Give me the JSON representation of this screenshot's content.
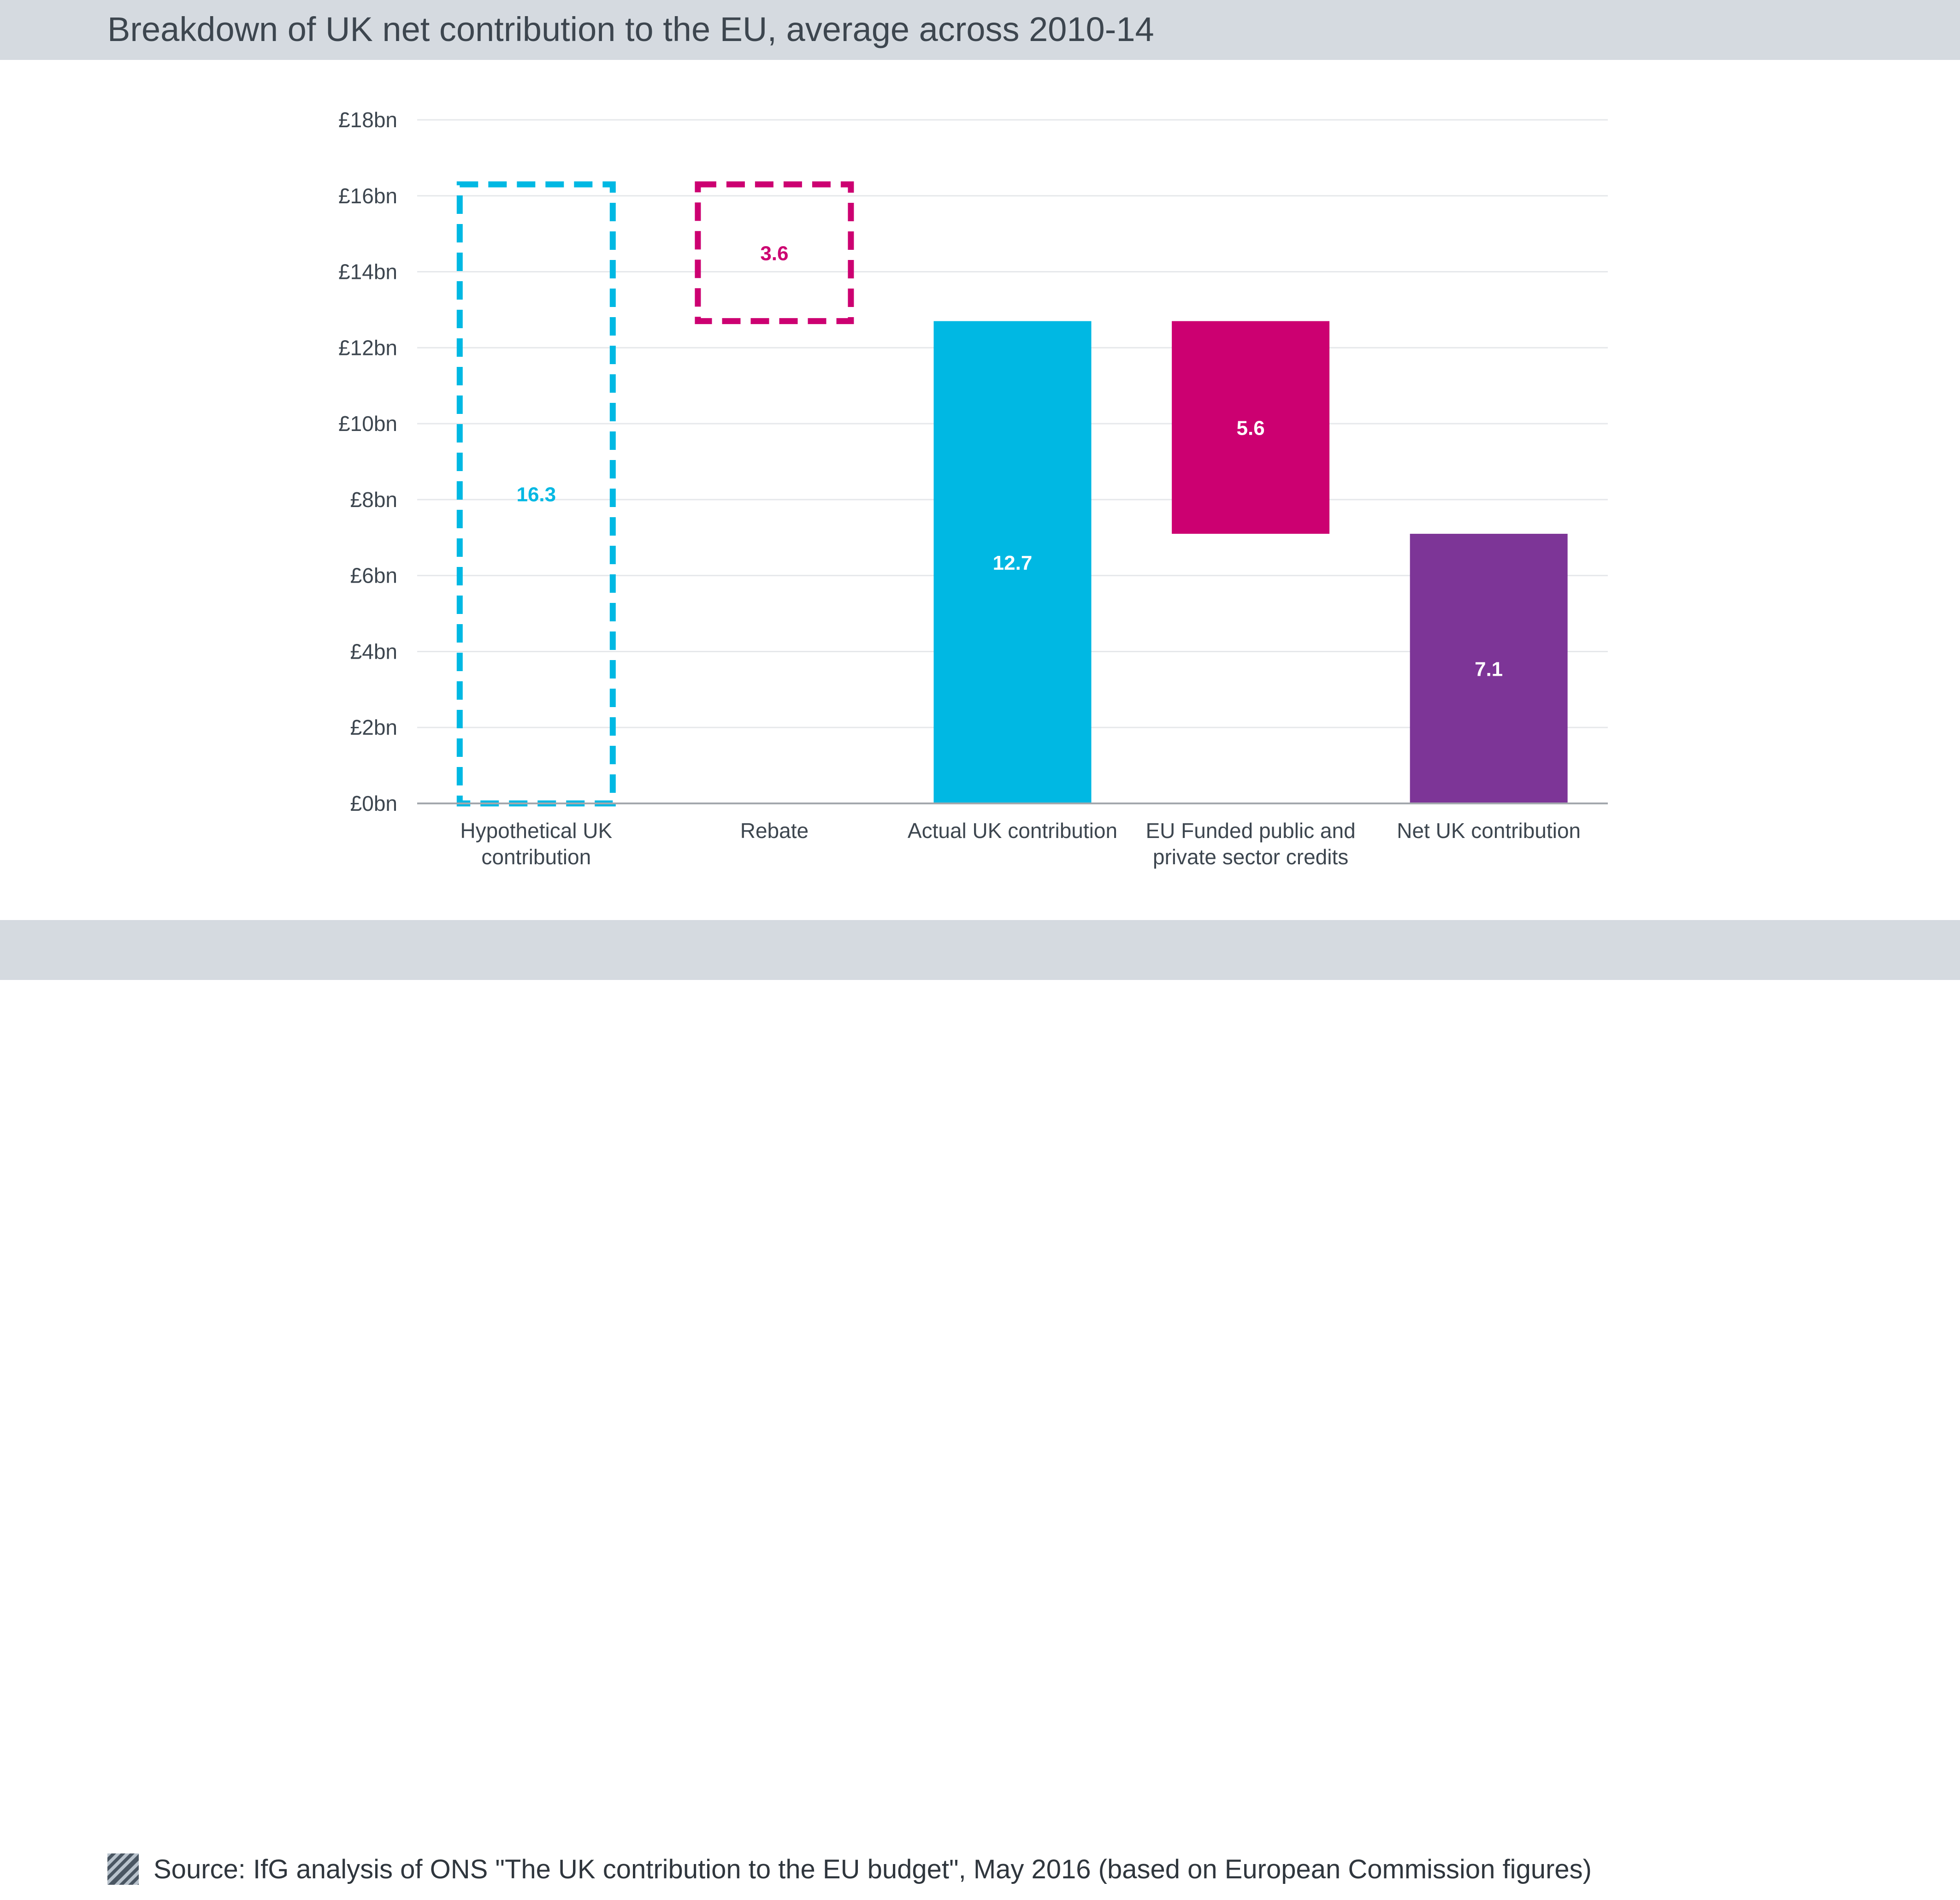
{
  "title": "Breakdown of UK net contribution to the EU, average across 2010-14",
  "source": "Source: IfG analysis of ONS \"The UK contribution to the EU budget\", May 2016 (based on European Commission figures)",
  "colors": {
    "cyan": "#00b8e3",
    "magenta": "#cc0071",
    "purple": "#7d3597",
    "text": "#3d464f",
    "grid": "#e6e8eb",
    "axis": "#a3a8ad"
  },
  "chart_data": {
    "type": "bar",
    "subtype": "waterfall",
    "title": "Breakdown of UK net contribution to the EU, average across 2010-14",
    "xlabel": "",
    "ylabel": "",
    "ylim": [
      0,
      18
    ],
    "yticks": [
      0,
      2,
      4,
      6,
      8,
      10,
      12,
      14,
      16,
      18
    ],
    "ytick_labels": [
      "£0bn",
      "£2bn",
      "£4bn",
      "£6bn",
      "£8bn",
      "£10bn",
      "£12bn",
      "£14bn",
      "£16bn",
      "£18bn"
    ],
    "grid": true,
    "categories": [
      [
        "Hypothetical UK",
        "contribution"
      ],
      [
        "Rebate"
      ],
      [
        "Actual UK contribution"
      ],
      [
        "EU Funded public and",
        "private sector credits"
      ],
      [
        "Net UK contribution"
      ]
    ],
    "bars": [
      {
        "label": "16.3",
        "value": 16.3,
        "base": 0,
        "top": 16.3,
        "color": "#00b8e3",
        "style": "dashed"
      },
      {
        "label": "3.6",
        "value": 3.6,
        "base": 12.7,
        "top": 16.3,
        "color": "#cc0071",
        "style": "dashed"
      },
      {
        "label": "12.7",
        "value": 12.7,
        "base": 0,
        "top": 12.7,
        "color": "#00b8e3",
        "style": "solid"
      },
      {
        "label": "5.6",
        "value": 5.6,
        "base": 7.1,
        "top": 12.7,
        "color": "#cc0071",
        "style": "solid"
      },
      {
        "label": "7.1",
        "value": 7.1,
        "base": 0,
        "top": 7.1,
        "color": "#7d3597",
        "style": "solid"
      }
    ]
  }
}
